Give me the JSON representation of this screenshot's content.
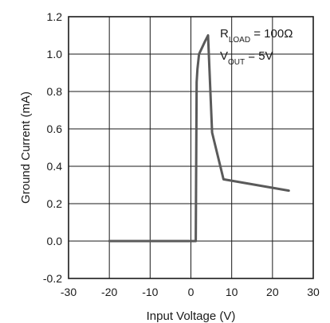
{
  "chart_data": {
    "type": "line",
    "title": "",
    "xlabel": "Input Voltage (V)",
    "ylabel": "Ground Current (mA)",
    "xlim": [
      -30,
      30
    ],
    "ylim": [
      -0.2,
      1.2
    ],
    "x_ticks": [
      -30,
      -20,
      -10,
      0,
      10,
      20,
      30
    ],
    "y_ticks": [
      -0.2,
      0.0,
      0.2,
      0.4,
      0.6,
      0.8,
      1.0,
      1.2
    ],
    "x_tick_labels": [
      "-30",
      "-20",
      "-10",
      "0",
      "10",
      "20",
      "30"
    ],
    "y_tick_labels": [
      "-0.2",
      "0.0",
      "0.2",
      "0.4",
      "0.6",
      "0.8",
      "1.0",
      "1.2"
    ],
    "grid": true,
    "line_color": "#5a5a5a",
    "series": [
      {
        "x": [
          -20,
          1.2,
          1.4,
          1.6,
          2.0,
          3.5,
          4.2,
          5.2,
          8.0,
          24.0
        ],
        "y": [
          0.0,
          0.0,
          0.85,
          0.92,
          1.0,
          1.07,
          1.1,
          0.58,
          0.33,
          0.27
        ]
      }
    ],
    "annotations": [
      {
        "main": "R",
        "sub": "LOAD",
        "rest": " = 100Ω"
      },
      {
        "main": "V",
        "sub": "OUT",
        "rest": " = 5V"
      }
    ]
  }
}
